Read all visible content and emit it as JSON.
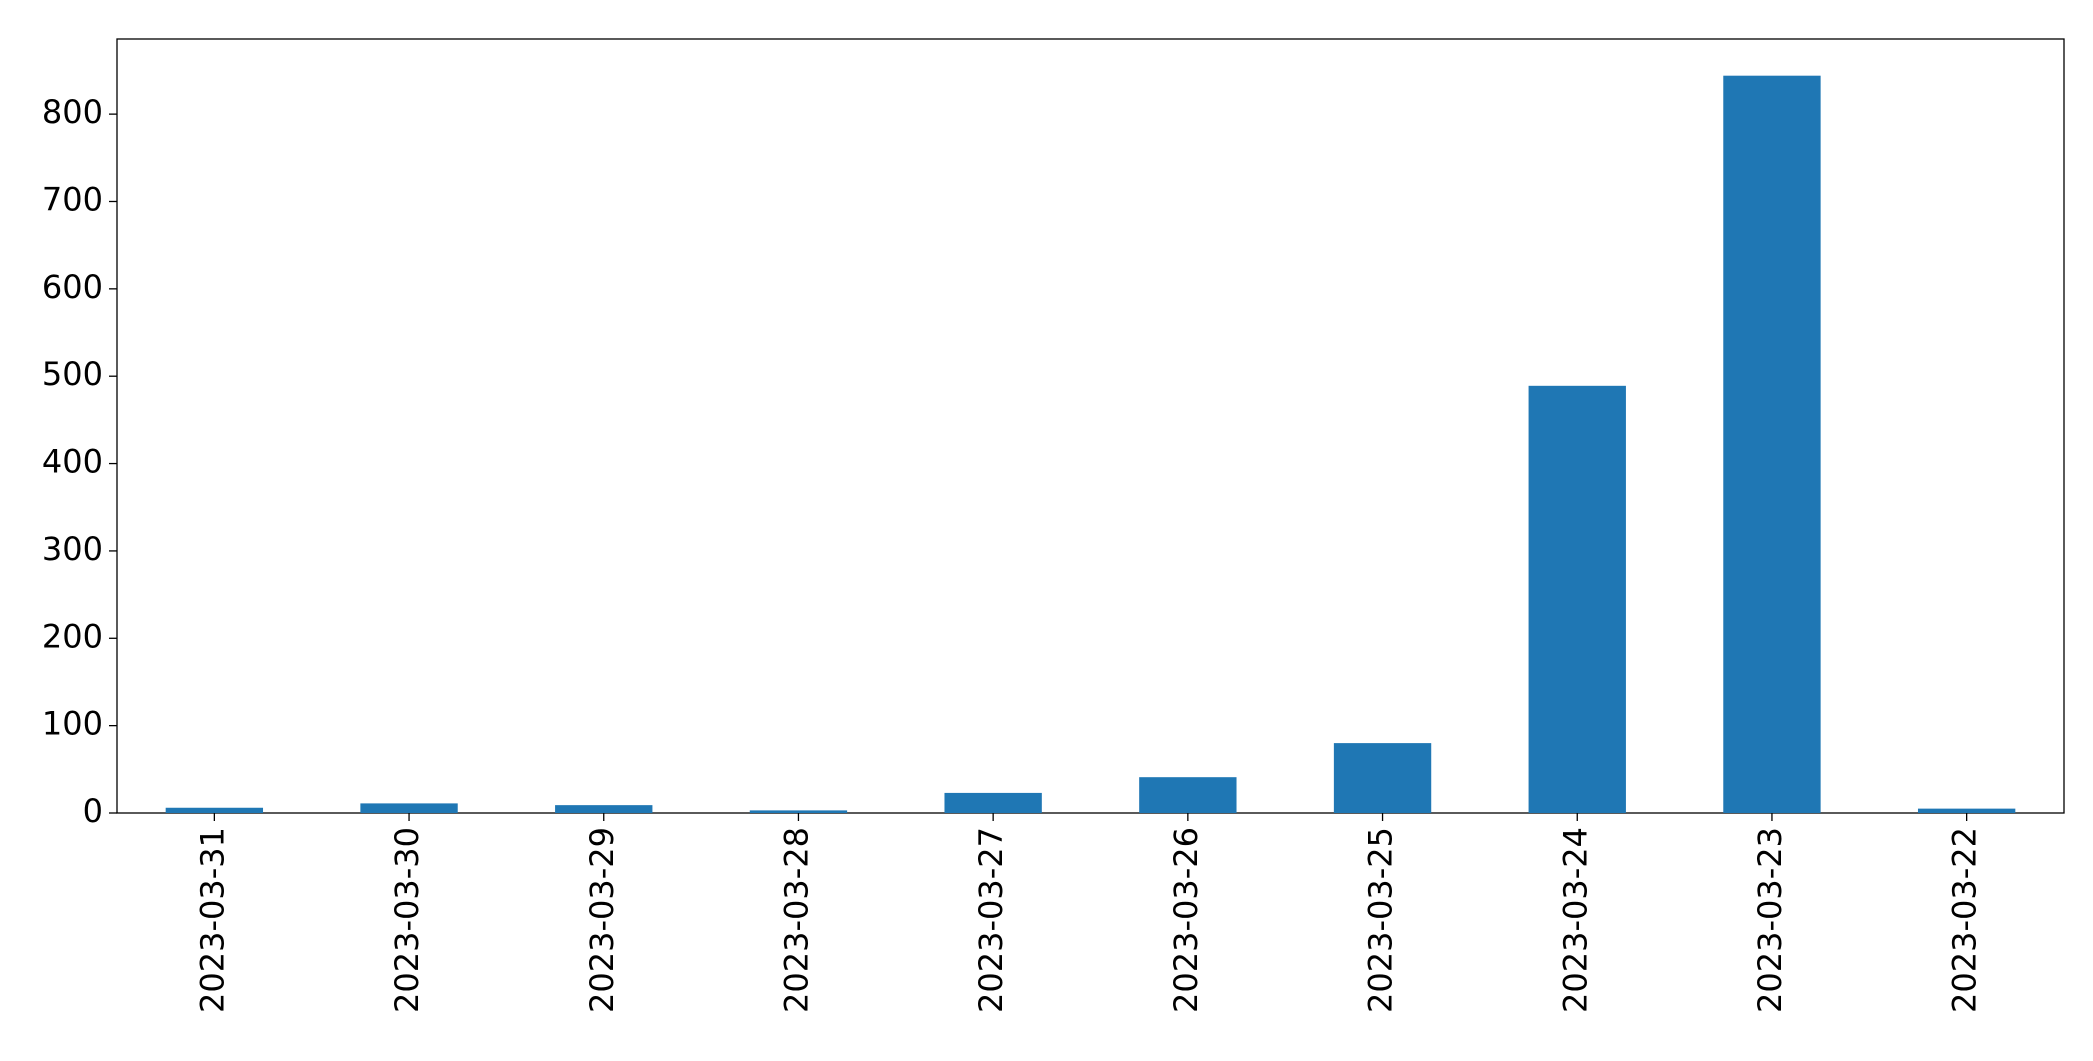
{
  "chart_data": {
    "type": "bar",
    "categories": [
      "2023-03-31",
      "2023-03-30",
      "2023-03-29",
      "2023-03-28",
      "2023-03-27",
      "2023-03-26",
      "2023-03-25",
      "2023-03-24",
      "2023-03-23",
      "2023-03-22"
    ],
    "values": [
      6,
      11,
      9,
      3,
      23,
      41,
      80,
      489,
      844,
      5
    ],
    "color": "#1f77b4",
    "ylim": [
      0,
      886
    ],
    "yticks": [
      0,
      100,
      200,
      300,
      400,
      500,
      600,
      700,
      800
    ],
    "grid": false
  }
}
